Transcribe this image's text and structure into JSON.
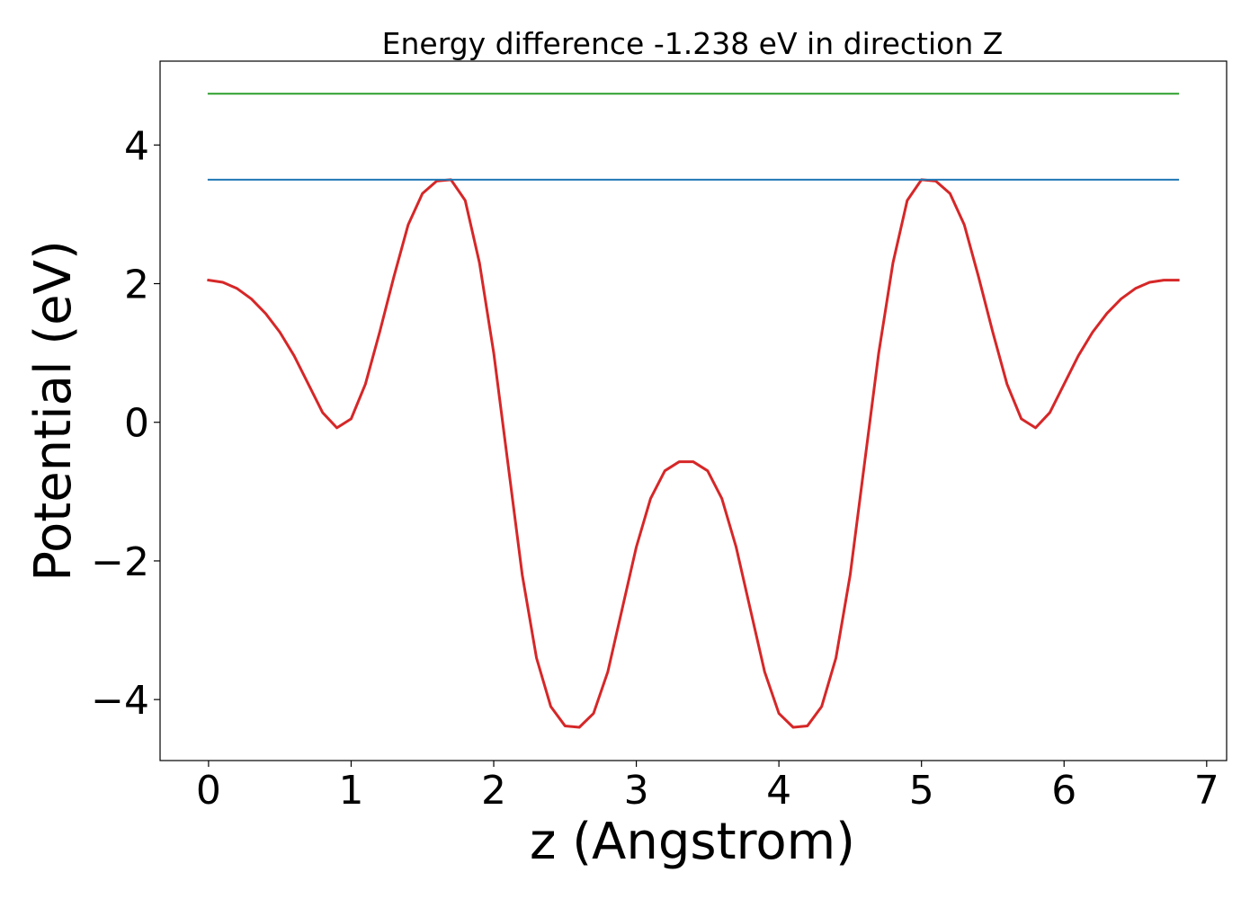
{
  "chart_data": {
    "type": "line",
    "title": "Energy difference -1.238 eV in direction Z",
    "xlabel": "z (Angstrom)",
    "ylabel": "Potential (eV)",
    "xlim": [
      -0.34,
      7.14
    ],
    "ylim": [
      -4.88,
      5.21
    ],
    "x_ticks": [
      0,
      1,
      2,
      3,
      4,
      5,
      6,
      7
    ],
    "x_tick_labels": [
      "0",
      "1",
      "2",
      "3",
      "4",
      "5",
      "6",
      "7"
    ],
    "y_ticks": [
      -4,
      -2,
      0,
      2,
      4
    ],
    "y_tick_labels": [
      "−4",
      "−2",
      "0",
      "2",
      "4"
    ],
    "grid": false,
    "series": [
      {
        "color": "#d62728",
        "x": [
          0.0,
          0.1,
          0.2,
          0.3,
          0.4,
          0.5,
          0.6,
          0.7,
          0.8,
          0.9,
          1.0,
          1.1,
          1.2,
          1.3,
          1.4,
          1.5,
          1.6,
          1.7,
          1.8,
          1.9,
          2.0,
          2.1,
          2.2,
          2.3,
          2.4,
          2.5,
          2.6,
          2.7,
          2.8,
          2.9,
          3.0,
          3.1,
          3.2,
          3.3,
          3.4,
          3.5,
          3.6,
          3.7,
          3.8,
          3.9,
          4.0,
          4.1,
          4.2,
          4.3,
          4.4,
          4.5,
          4.6,
          4.7,
          4.8,
          4.9,
          5.0,
          5.1,
          5.2,
          5.3,
          5.4,
          5.5,
          5.6,
          5.7,
          5.8,
          5.9,
          6.0,
          6.1,
          6.2,
          6.3,
          6.4,
          6.5,
          6.6,
          6.7,
          6.8
        ],
        "y": [
          2.05,
          2.02,
          1.93,
          1.78,
          1.57,
          1.3,
          0.96,
          0.55,
          0.14,
          -0.08,
          0.05,
          0.55,
          1.3,
          2.1,
          2.85,
          3.3,
          3.48,
          3.5,
          3.2,
          2.3,
          1.0,
          -0.6,
          -2.2,
          -3.4,
          -4.1,
          -4.38,
          -4.4,
          -4.2,
          -3.6,
          -2.7,
          -1.8,
          -1.1,
          -0.7,
          -0.57,
          -0.57,
          -0.7,
          -1.1,
          -1.8,
          -2.7,
          -3.6,
          -4.2,
          -4.4,
          -4.38,
          -4.1,
          -3.4,
          -2.2,
          -0.6,
          1.0,
          2.3,
          3.2,
          3.5,
          3.48,
          3.3,
          2.85,
          2.1,
          1.3,
          0.55,
          0.05,
          -0.08,
          0.14,
          0.55,
          0.96,
          1.3,
          1.57,
          1.78,
          1.93,
          2.02,
          2.05,
          2.05
        ]
      },
      {
        "color": "#1f77b4",
        "x": [
          0.0,
          6.8
        ],
        "y": [
          3.5,
          3.5
        ]
      },
      {
        "color": "#2ca02c",
        "x": [
          0.0,
          6.8
        ],
        "y": [
          4.74,
          4.74
        ]
      }
    ]
  }
}
